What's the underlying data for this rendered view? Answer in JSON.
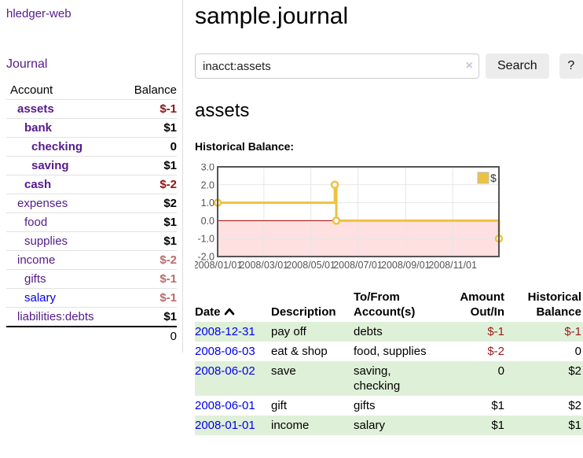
{
  "app": {
    "brand": "hledger-web",
    "nav": {
      "journal": "Journal"
    }
  },
  "colors": {
    "link_purple": "#551a8b",
    "link_blue": "#0000ee",
    "negative_bold": "#8f1212",
    "negative_soft": "#bb6a6a",
    "negative_table": "#9d1c1c",
    "row_stripe_green": "#dff0d8"
  },
  "sidebar": {
    "headers": {
      "account": "Account",
      "balance": "Balance"
    },
    "accounts": [
      {
        "name": "assets",
        "balance": "$-1",
        "level": 1,
        "bold": true,
        "neg": "strong"
      },
      {
        "name": "bank",
        "balance": "$1",
        "level": 2,
        "bold": true
      },
      {
        "name": "checking",
        "balance": "0",
        "level": 3,
        "bold": true
      },
      {
        "name": "saving",
        "balance": "$1",
        "level": 3,
        "bold": true
      },
      {
        "name": "cash",
        "balance": "$-2",
        "level": 2,
        "bold": true,
        "neg": "strong"
      },
      {
        "name": "expenses",
        "balance": "$2",
        "level": 1
      },
      {
        "name": "food",
        "balance": "$1",
        "level": 2
      },
      {
        "name": "supplies",
        "balance": "$1",
        "level": 2
      },
      {
        "name": "income",
        "balance": "$-2",
        "level": 1,
        "neg": "soft"
      },
      {
        "name": "gifts",
        "balance": "$-1",
        "level": 2,
        "neg": "soft"
      },
      {
        "name": "salary",
        "balance": "$-1",
        "level": 2,
        "neg": "soft",
        "unvisited": true
      },
      {
        "name": "liabilities:debts",
        "balance": "$1",
        "level": 1
      }
    ],
    "total": "0"
  },
  "header": {
    "title": "sample.journal"
  },
  "search": {
    "value": "inacct:assets",
    "clear_icon": "×",
    "button_label": "Search",
    "help_label": "?"
  },
  "account_page": {
    "heading": "assets",
    "chart_title": "Historical Balance:"
  },
  "chart_data": {
    "type": "line",
    "step": true,
    "title": "Historical Balance:",
    "series": [
      {
        "name": "$",
        "color": "#EDC240",
        "points": [
          {
            "date": "2008-01-01",
            "day": 0,
            "value": 1
          },
          {
            "date": "2008-06-01",
            "day": 152,
            "value": 2
          },
          {
            "date": "2008-06-03",
            "day": 154,
            "value": 0
          },
          {
            "date": "2008-12-31",
            "day": 365,
            "value": -1
          }
        ]
      }
    ],
    "ylim": [
      -2,
      3
    ],
    "yticks": [
      "3.0",
      "2.0",
      "1.0",
      "0.0",
      "-1.0",
      "-2.0"
    ],
    "xticks": [
      {
        "label": "2008/01/01",
        "day": 0
      },
      {
        "label": "2008/03/01",
        "day": 60
      },
      {
        "label": "2008/05/01",
        "day": 121
      },
      {
        "label": "2008/07/01",
        "day": 182
      },
      {
        "label": "2008/09/01",
        "day": 244
      },
      {
        "label": "2008/11/01",
        "day": 305
      }
    ],
    "total_days": 365,
    "grid": true,
    "legend": {
      "label": "$",
      "position": "top-right"
    },
    "negative_fill": "rgba(255,0,0,0.12)",
    "zero_line_color": "#a40000",
    "border_color": "#545454",
    "grid_color": "#e6e6e6",
    "tick_label_color": "#545454"
  },
  "register": {
    "columns": [
      {
        "key": "date",
        "line1": "Date",
        "line2": "",
        "align": "left",
        "sort": "asc"
      },
      {
        "key": "description",
        "line1": "Description",
        "line2": "",
        "align": "left"
      },
      {
        "key": "accounts",
        "line1": "To/From",
        "line2": "Account(s)",
        "align": "left"
      },
      {
        "key": "amount",
        "line1": "Amount",
        "line2": "Out/In",
        "align": "right"
      },
      {
        "key": "balance",
        "line1": "Historical",
        "line2": "Balance",
        "align": "right"
      }
    ],
    "rows": [
      {
        "date": "2008-12-31",
        "description": "pay off",
        "accounts": "debts",
        "amount": "$-1",
        "amount_neg": true,
        "balance": "$-1",
        "balance_neg": true
      },
      {
        "date": "2008-06-03",
        "description": "eat & shop",
        "accounts": "food, supplies",
        "amount": "$-2",
        "amount_neg": true,
        "balance": "0",
        "balance_neg": false
      },
      {
        "date": "2008-06-02",
        "description": "save",
        "accounts": "saving, checking",
        "amount": "0",
        "amount_neg": false,
        "balance": "$2",
        "balance_neg": false
      },
      {
        "date": "2008-06-01",
        "description": "gift",
        "accounts": "gifts",
        "amount": "$1",
        "amount_neg": false,
        "balance": "$2",
        "balance_neg": false
      },
      {
        "date": "2008-01-01",
        "description": "income",
        "accounts": "salary",
        "amount": "$1",
        "amount_neg": false,
        "balance": "$1",
        "balance_neg": false
      }
    ]
  }
}
